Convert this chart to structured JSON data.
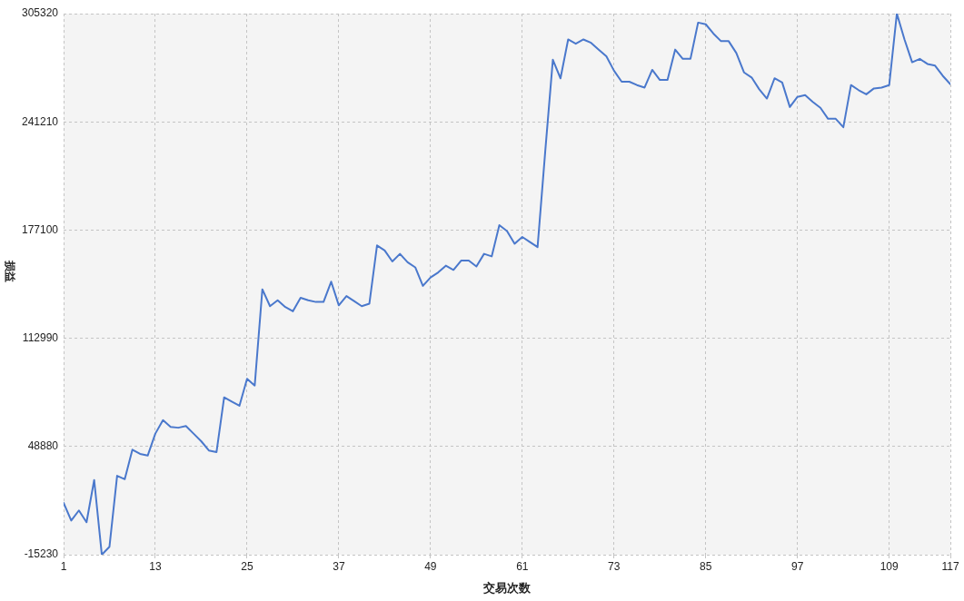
{
  "chart_data": {
    "type": "line",
    "xlabel": "交易次数",
    "ylabel": "损益",
    "x": [
      1,
      2,
      3,
      4,
      5,
      6,
      7,
      8,
      9,
      10,
      11,
      12,
      13,
      14,
      15,
      16,
      17,
      18,
      19,
      20,
      21,
      22,
      23,
      24,
      25,
      26,
      27,
      28,
      29,
      30,
      31,
      32,
      33,
      34,
      35,
      36,
      37,
      38,
      39,
      40,
      41,
      42,
      43,
      44,
      45,
      46,
      47,
      48,
      49,
      50,
      51,
      52,
      53,
      54,
      55,
      56,
      57,
      58,
      59,
      60,
      61,
      62,
      63,
      64,
      65,
      66,
      67,
      68,
      69,
      70,
      71,
      72,
      73,
      74,
      75,
      76,
      77,
      78,
      79,
      80,
      81,
      82,
      83,
      84,
      85,
      86,
      87,
      88,
      89,
      90,
      91,
      92,
      93,
      94,
      95,
      96,
      97,
      98,
      99,
      100,
      101,
      102,
      103,
      104,
      105,
      106,
      107,
      108,
      109,
      110,
      111,
      112,
      113,
      114,
      115,
      116,
      117
    ],
    "values": [
      15500,
      5000,
      11000,
      4000,
      29000,
      -15230,
      -10500,
      31500,
      29500,
      47000,
      44500,
      43500,
      56500,
      64500,
      60500,
      60000,
      61000,
      56500,
      52000,
      46500,
      45500,
      78000,
      75500,
      73000,
      89000,
      85000,
      142000,
      132000,
      135500,
      131500,
      129000,
      137000,
      135500,
      134500,
      134500,
      146500,
      132500,
      138000,
      135000,
      132000,
      133500,
      168000,
      165000,
      158500,
      163000,
      158000,
      155000,
      144000,
      149000,
      152000,
      156000,
      153500,
      159000,
      159000,
      155500,
      163000,
      161500,
      180000,
      176500,
      169000,
      173000,
      170000,
      167000,
      223500,
      278000,
      267000,
      290000,
      287500,
      290000,
      288000,
      284000,
      280000,
      271500,
      265000,
      265000,
      263000,
      261500,
      272000,
      266000,
      266000,
      284000,
      278500,
      278500,
      300000,
      299000,
      293500,
      289000,
      289000,
      282000,
      270500,
      267500,
      260500,
      255000,
      267000,
      264500,
      250000,
      256000,
      257000,
      253000,
      249500,
      243000,
      243000,
      238000,
      263000,
      260000,
      257500,
      261000,
      261500,
      263000,
      305320,
      290000,
      276500,
      278500,
      275500,
      274500,
      268500,
      263500
    ],
    "color": "#4a78cc",
    "xlim": [
      1,
      117
    ],
    "xticks": [
      1,
      13,
      25,
      37,
      49,
      61,
      73,
      85,
      97,
      109,
      117
    ],
    "ylim": [
      -15230,
      305320
    ],
    "yticks": [
      -15230,
      48880,
      112990,
      177100,
      241210,
      305320
    ],
    "grid": true
  }
}
